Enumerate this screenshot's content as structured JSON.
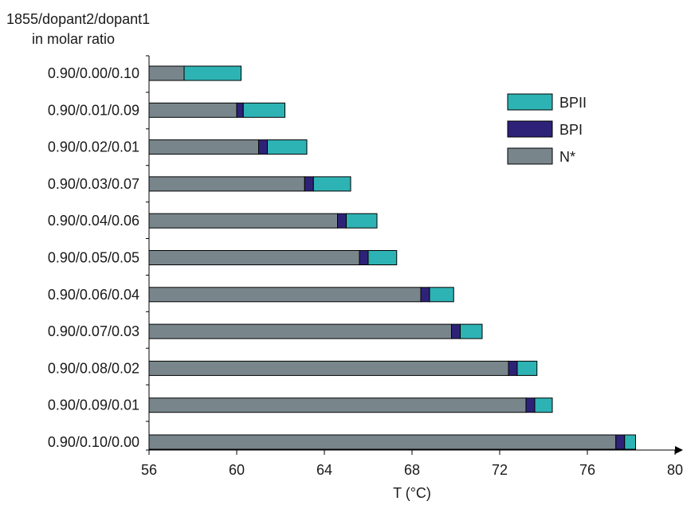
{
  "chart_data": {
    "type": "bar",
    "orientation": "horizontal",
    "stacked": true,
    "y_title_line1": "1855/dopant2/dopant1",
    "y_title_line2": "in molar ratio",
    "xlabel": "T (°C)",
    "xlim": [
      56,
      80
    ],
    "xticks": [
      56,
      60,
      64,
      68,
      72,
      76,
      80
    ],
    "grid": false,
    "legend_position": "right",
    "categories": [
      "0.90/0.00/0.10",
      "0.90/0.01/0.09",
      "0.90/0.02/0.01",
      "0.90/0.03/0.07",
      "0.90/0.04/0.06",
      "0.90/0.05/0.05",
      "0.90/0.06/0.04",
      "0.90/0.07/0.03",
      "0.90/0.08/0.02",
      "0.90/0.09/0.01",
      "0.90/0.10/0.00"
    ],
    "series": [
      {
        "name": "N*",
        "color": "#78868c",
        "start": [
          56,
          56,
          56,
          56,
          56,
          56,
          56,
          56,
          56,
          56,
          56
        ],
        "end": [
          57.6,
          60.0,
          61.0,
          63.1,
          64.6,
          65.6,
          68.4,
          69.8,
          72.4,
          73.2,
          77.3
        ]
      },
      {
        "name": "BPI",
        "color": "#2e2278",
        "start": [
          57.6,
          60.0,
          61.0,
          63.1,
          64.6,
          65.6,
          68.4,
          69.8,
          72.4,
          73.2,
          77.3
        ],
        "end": [
          57.6,
          60.3,
          61.4,
          63.5,
          65.0,
          66.0,
          68.8,
          70.2,
          72.8,
          73.6,
          77.7
        ]
      },
      {
        "name": "BPII",
        "color": "#2eb3b5",
        "start": [
          57.6,
          60.3,
          61.4,
          63.5,
          65.0,
          66.0,
          68.8,
          70.2,
          72.8,
          73.6,
          77.7
        ],
        "end": [
          60.2,
          62.2,
          63.2,
          65.2,
          66.4,
          67.3,
          69.9,
          71.2,
          73.7,
          74.4,
          78.2
        ]
      }
    ],
    "legend_order": [
      "BPII",
      "BPI",
      "N*"
    ]
  }
}
